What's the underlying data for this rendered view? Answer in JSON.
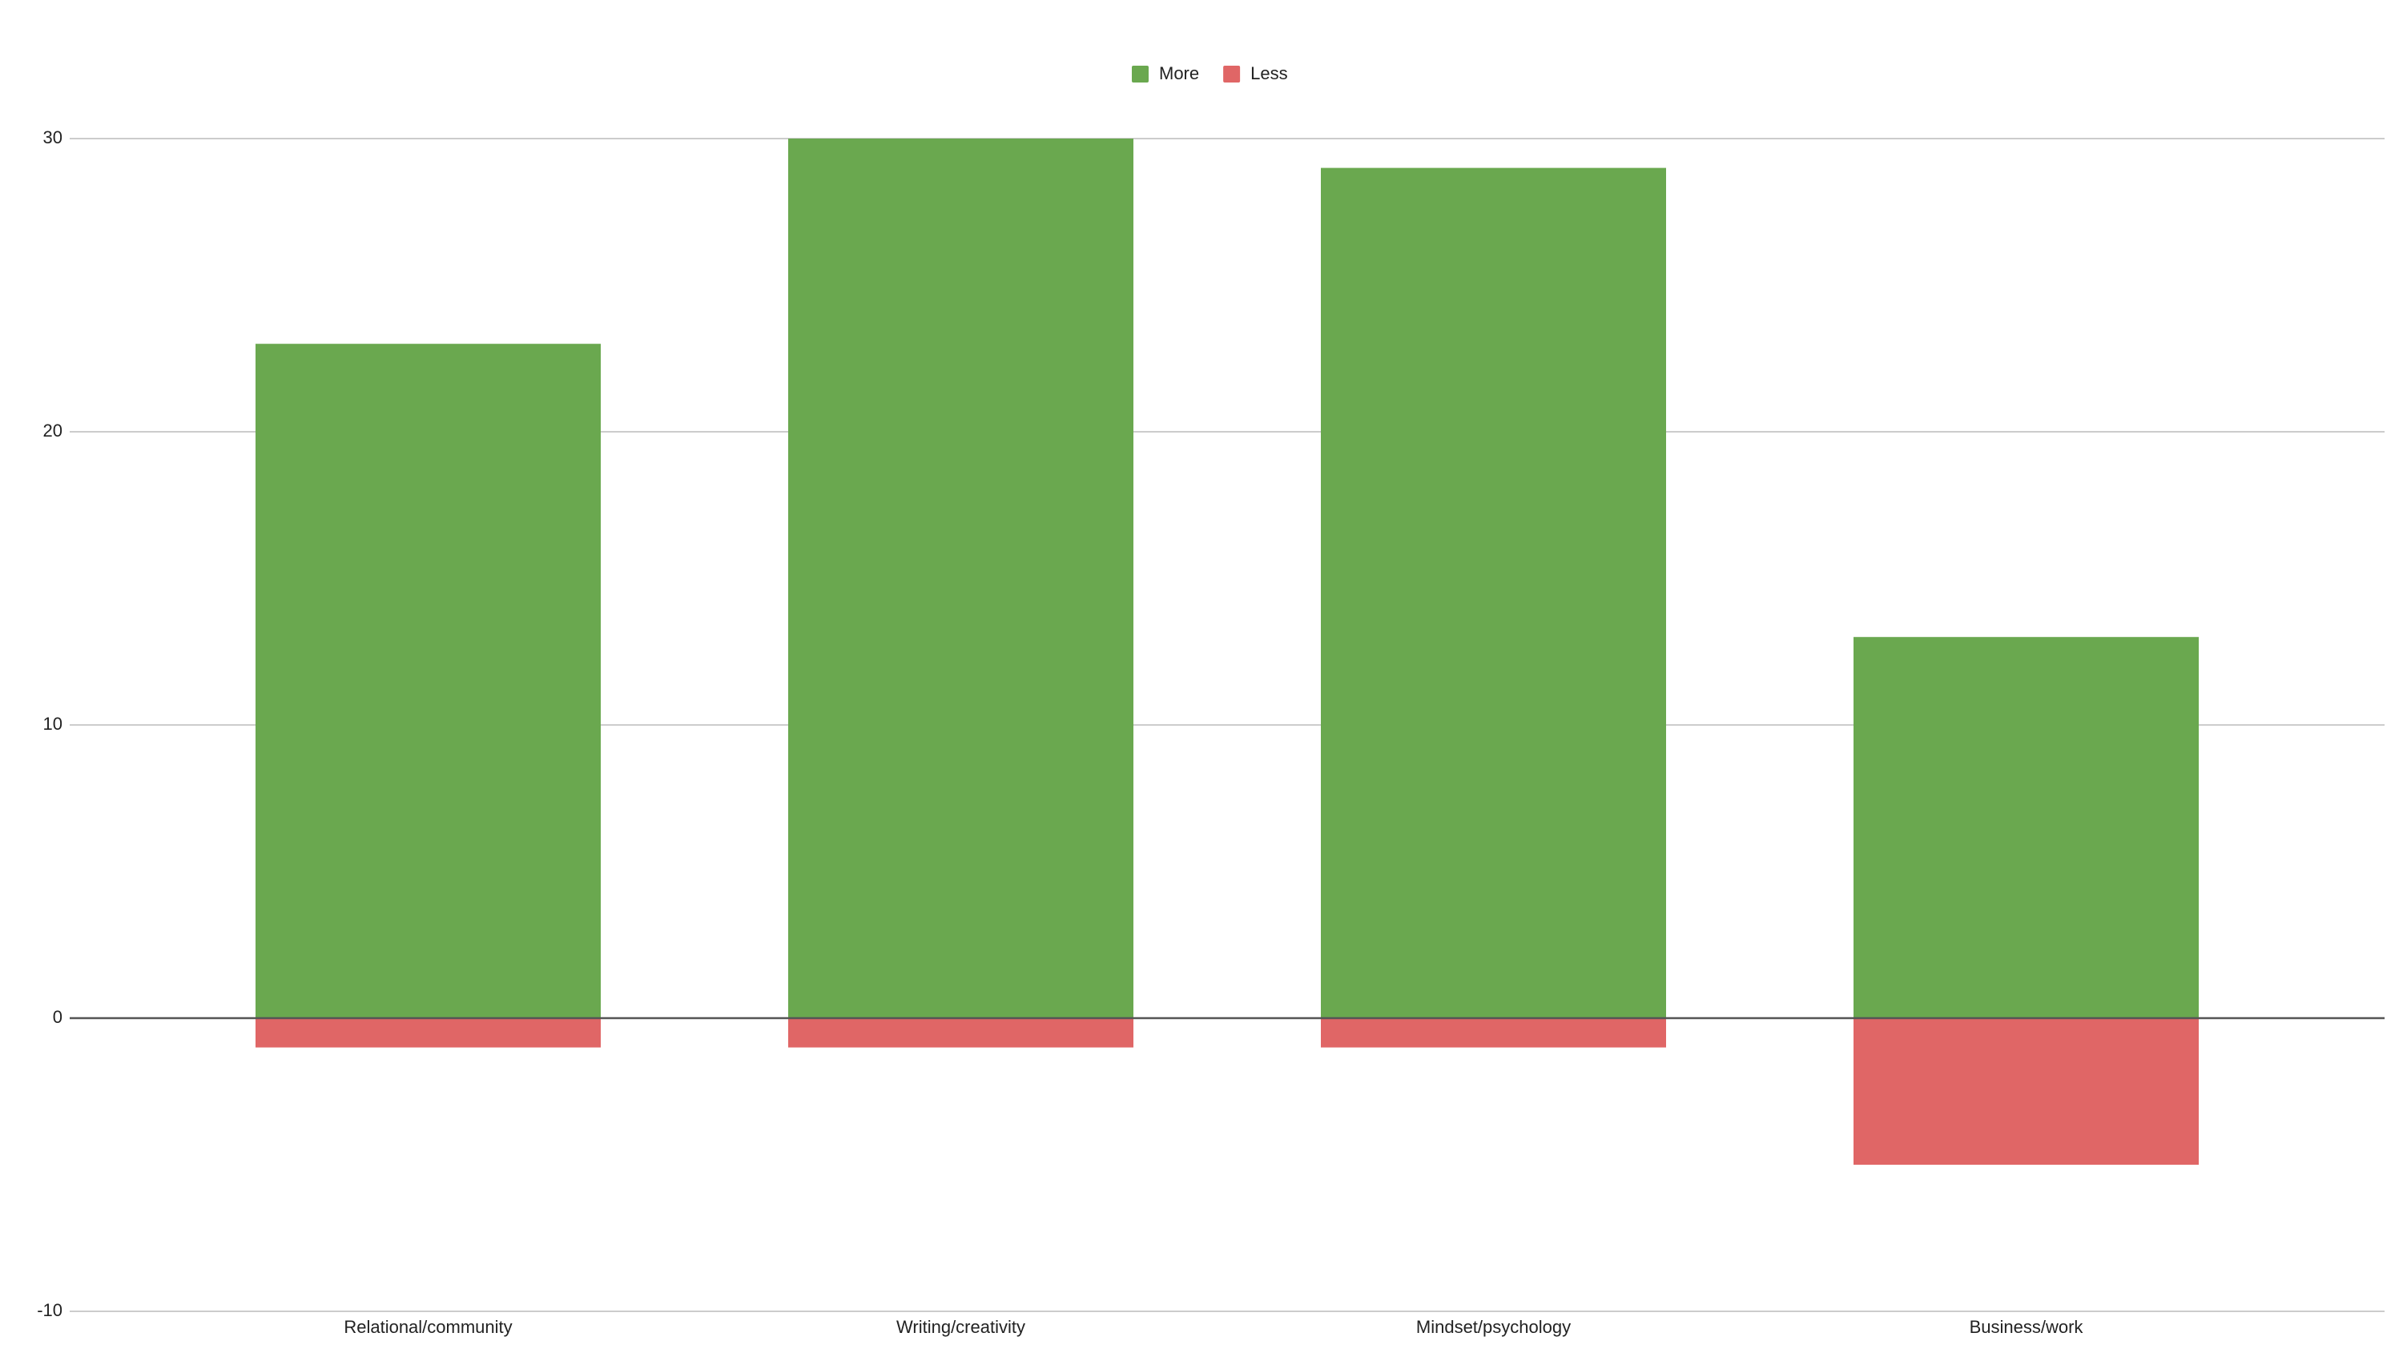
{
  "chart_data": {
    "type": "stacked_bar",
    "categories": [
      "Relational/community",
      "Writing/creativity",
      "Mindset/psychology",
      "Business/work"
    ],
    "series": [
      {
        "name": "More",
        "color": "#6aa84f",
        "values": [
          23,
          30,
          29,
          13
        ]
      },
      {
        "name": "Less",
        "color": "#e06666",
        "values": [
          -1,
          -1,
          -1,
          -5
        ]
      }
    ],
    "ylim": [
      -10,
      30
    ],
    "yticks": [
      -10,
      0,
      10,
      20,
      30
    ],
    "grid": true,
    "legend": "top"
  }
}
